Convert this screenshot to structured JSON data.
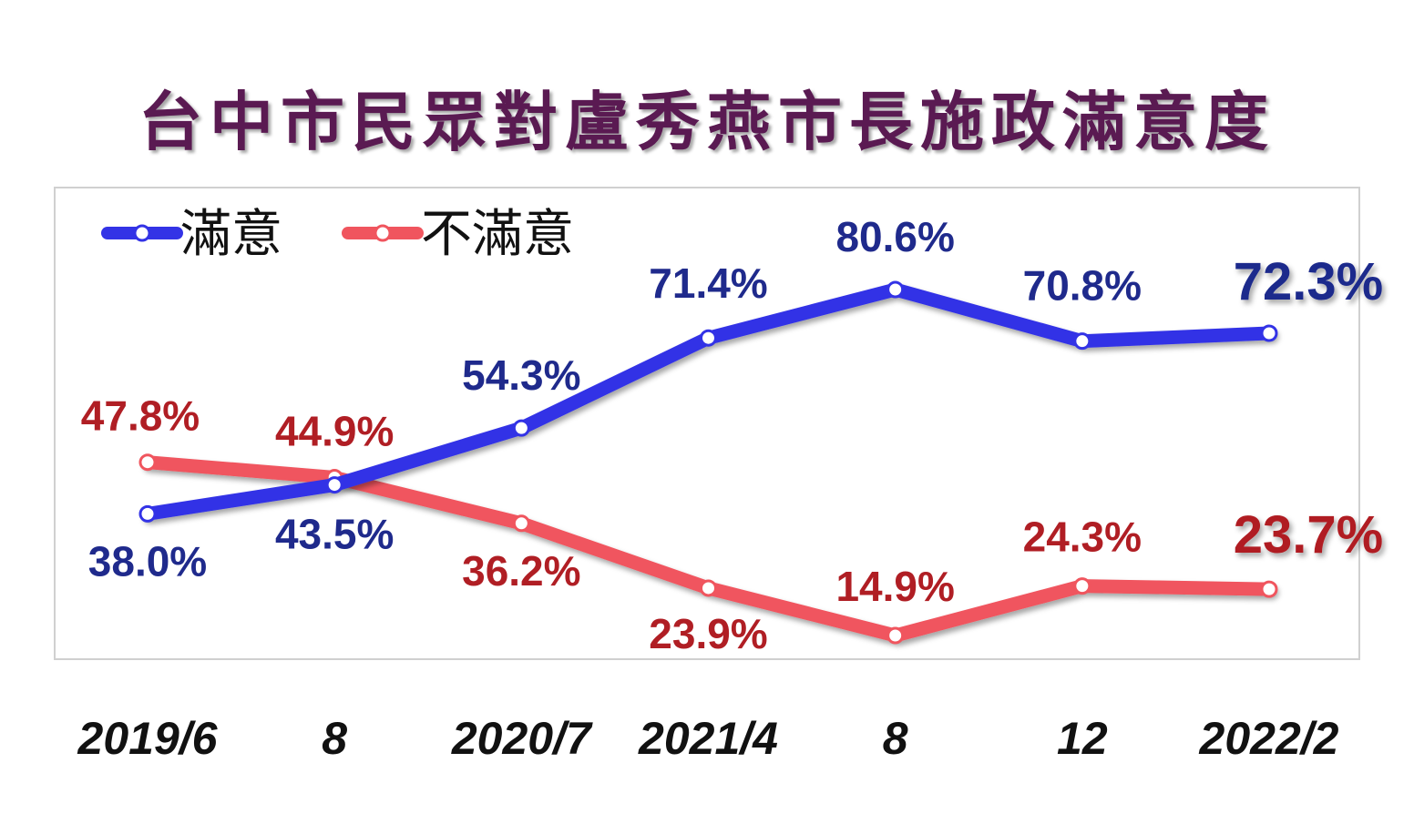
{
  "title": "台中市民眾對盧秀燕市長施政滿意度",
  "chart_data": {
    "type": "line",
    "categories": [
      "2019/6",
      "8",
      "2020/7",
      "2021/4",
      "8",
      "12",
      "2022/2"
    ],
    "series": [
      {
        "name": "滿意",
        "color": "#3333e6",
        "label_color": "#1f2a8c",
        "values": [
          38.0,
          43.5,
          54.3,
          71.4,
          80.6,
          70.8,
          72.3
        ],
        "labels": [
          "38.0%",
          "43.5%",
          "54.3%",
          "71.4%",
          "80.6%",
          "70.8%",
          "72.3%"
        ]
      },
      {
        "name": "不滿意",
        "color": "#f0555e",
        "label_color": "#b01e24",
        "values": [
          47.8,
          44.9,
          36.2,
          23.9,
          14.9,
          24.3,
          23.7
        ],
        "labels": [
          "47.8%",
          "44.9%",
          "36.2%",
          "23.9%",
          "14.9%",
          "24.3%",
          "23.7%"
        ]
      }
    ],
    "ylim": [
      10,
      88
    ],
    "grid": false,
    "legend_position": "top-left"
  }
}
